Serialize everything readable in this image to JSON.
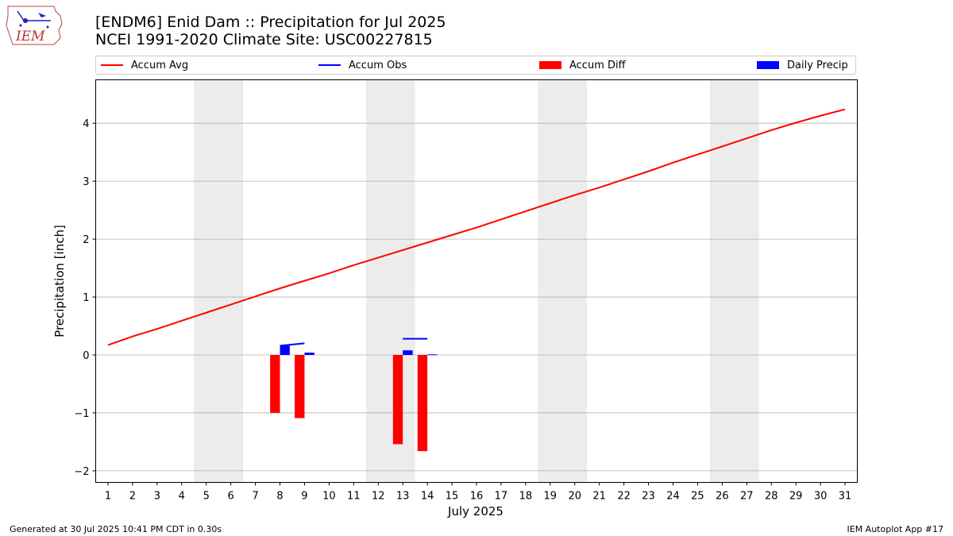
{
  "header": {
    "logo_text": "IEM",
    "title_line1": "[ENDM6] Enid Dam :: Precipitation for Jul 2025",
    "title_line2": "NCEI 1991-2020 Climate Site: USC00227815"
  },
  "footer": {
    "left": "Generated at 30 Jul 2025 10:41 PM CDT in 0.30s",
    "right": "IEM Autoplot App #17"
  },
  "colors": {
    "avg": "#ff0000",
    "obs": "#0000ff",
    "diff": "#ff0000",
    "daily": "#0000ff",
    "weekend": "#ececec",
    "grid": "#b0b0b0"
  },
  "chart_data": {
    "type": "bar",
    "xlabel": "July 2025",
    "ylabel": "Precipitation [inch]",
    "xlim": [
      0.5,
      31.5
    ],
    "ylim": [
      -2.2,
      4.75
    ],
    "yticks": [
      -2,
      -1,
      0,
      1,
      2,
      3,
      4
    ],
    "ytick_labels": [
      "−2",
      "−1",
      "0",
      "1",
      "2",
      "3",
      "4"
    ],
    "x": [
      1,
      2,
      3,
      4,
      5,
      6,
      7,
      8,
      9,
      10,
      11,
      12,
      13,
      14,
      15,
      16,
      17,
      18,
      19,
      20,
      21,
      22,
      23,
      24,
      25,
      26,
      27,
      28,
      29,
      30,
      31
    ],
    "grid": "horizontal",
    "legend_position": "top",
    "shaded_weekends": [
      [
        4.5,
        6.5
      ],
      [
        11.5,
        13.5
      ],
      [
        18.5,
        20.5
      ],
      [
        25.5,
        27.5
      ]
    ],
    "series": [
      {
        "name": "Accum Avg",
        "kind": "line",
        "x": [
          1,
          2,
          3,
          4,
          5,
          6,
          7,
          8,
          9,
          10,
          11,
          12,
          13,
          14,
          15,
          16,
          17,
          18,
          19,
          20,
          21,
          22,
          23,
          24,
          25,
          26,
          27,
          28,
          29,
          30,
          31
        ],
        "values": [
          0.17,
          0.32,
          0.45,
          0.59,
          0.73,
          0.87,
          1.01,
          1.15,
          1.28,
          1.41,
          1.55,
          1.68,
          1.81,
          1.94,
          2.07,
          2.2,
          2.34,
          2.48,
          2.62,
          2.76,
          2.89,
          3.03,
          3.17,
          3.32,
          3.46,
          3.6,
          3.74,
          3.88,
          4.01,
          4.13,
          4.24
        ]
      },
      {
        "name": "Accum Obs",
        "kind": "line",
        "segments": [
          {
            "x": [
              8,
              9
            ],
            "values": [
              0.16,
              0.2
            ]
          },
          {
            "x": [
              13,
              14
            ],
            "values": [
              0.28,
              0.28
            ]
          }
        ]
      },
      {
        "name": "Accum Diff",
        "kind": "bar",
        "x": [
          8,
          9,
          13,
          14
        ],
        "values": [
          -1.0,
          -1.09,
          -1.54,
          -1.66
        ]
      },
      {
        "name": "Daily Precip",
        "kind": "bar",
        "x": [
          8,
          9,
          13,
          14
        ],
        "values": [
          0.16,
          0.04,
          0.08,
          0.01
        ]
      }
    ]
  }
}
